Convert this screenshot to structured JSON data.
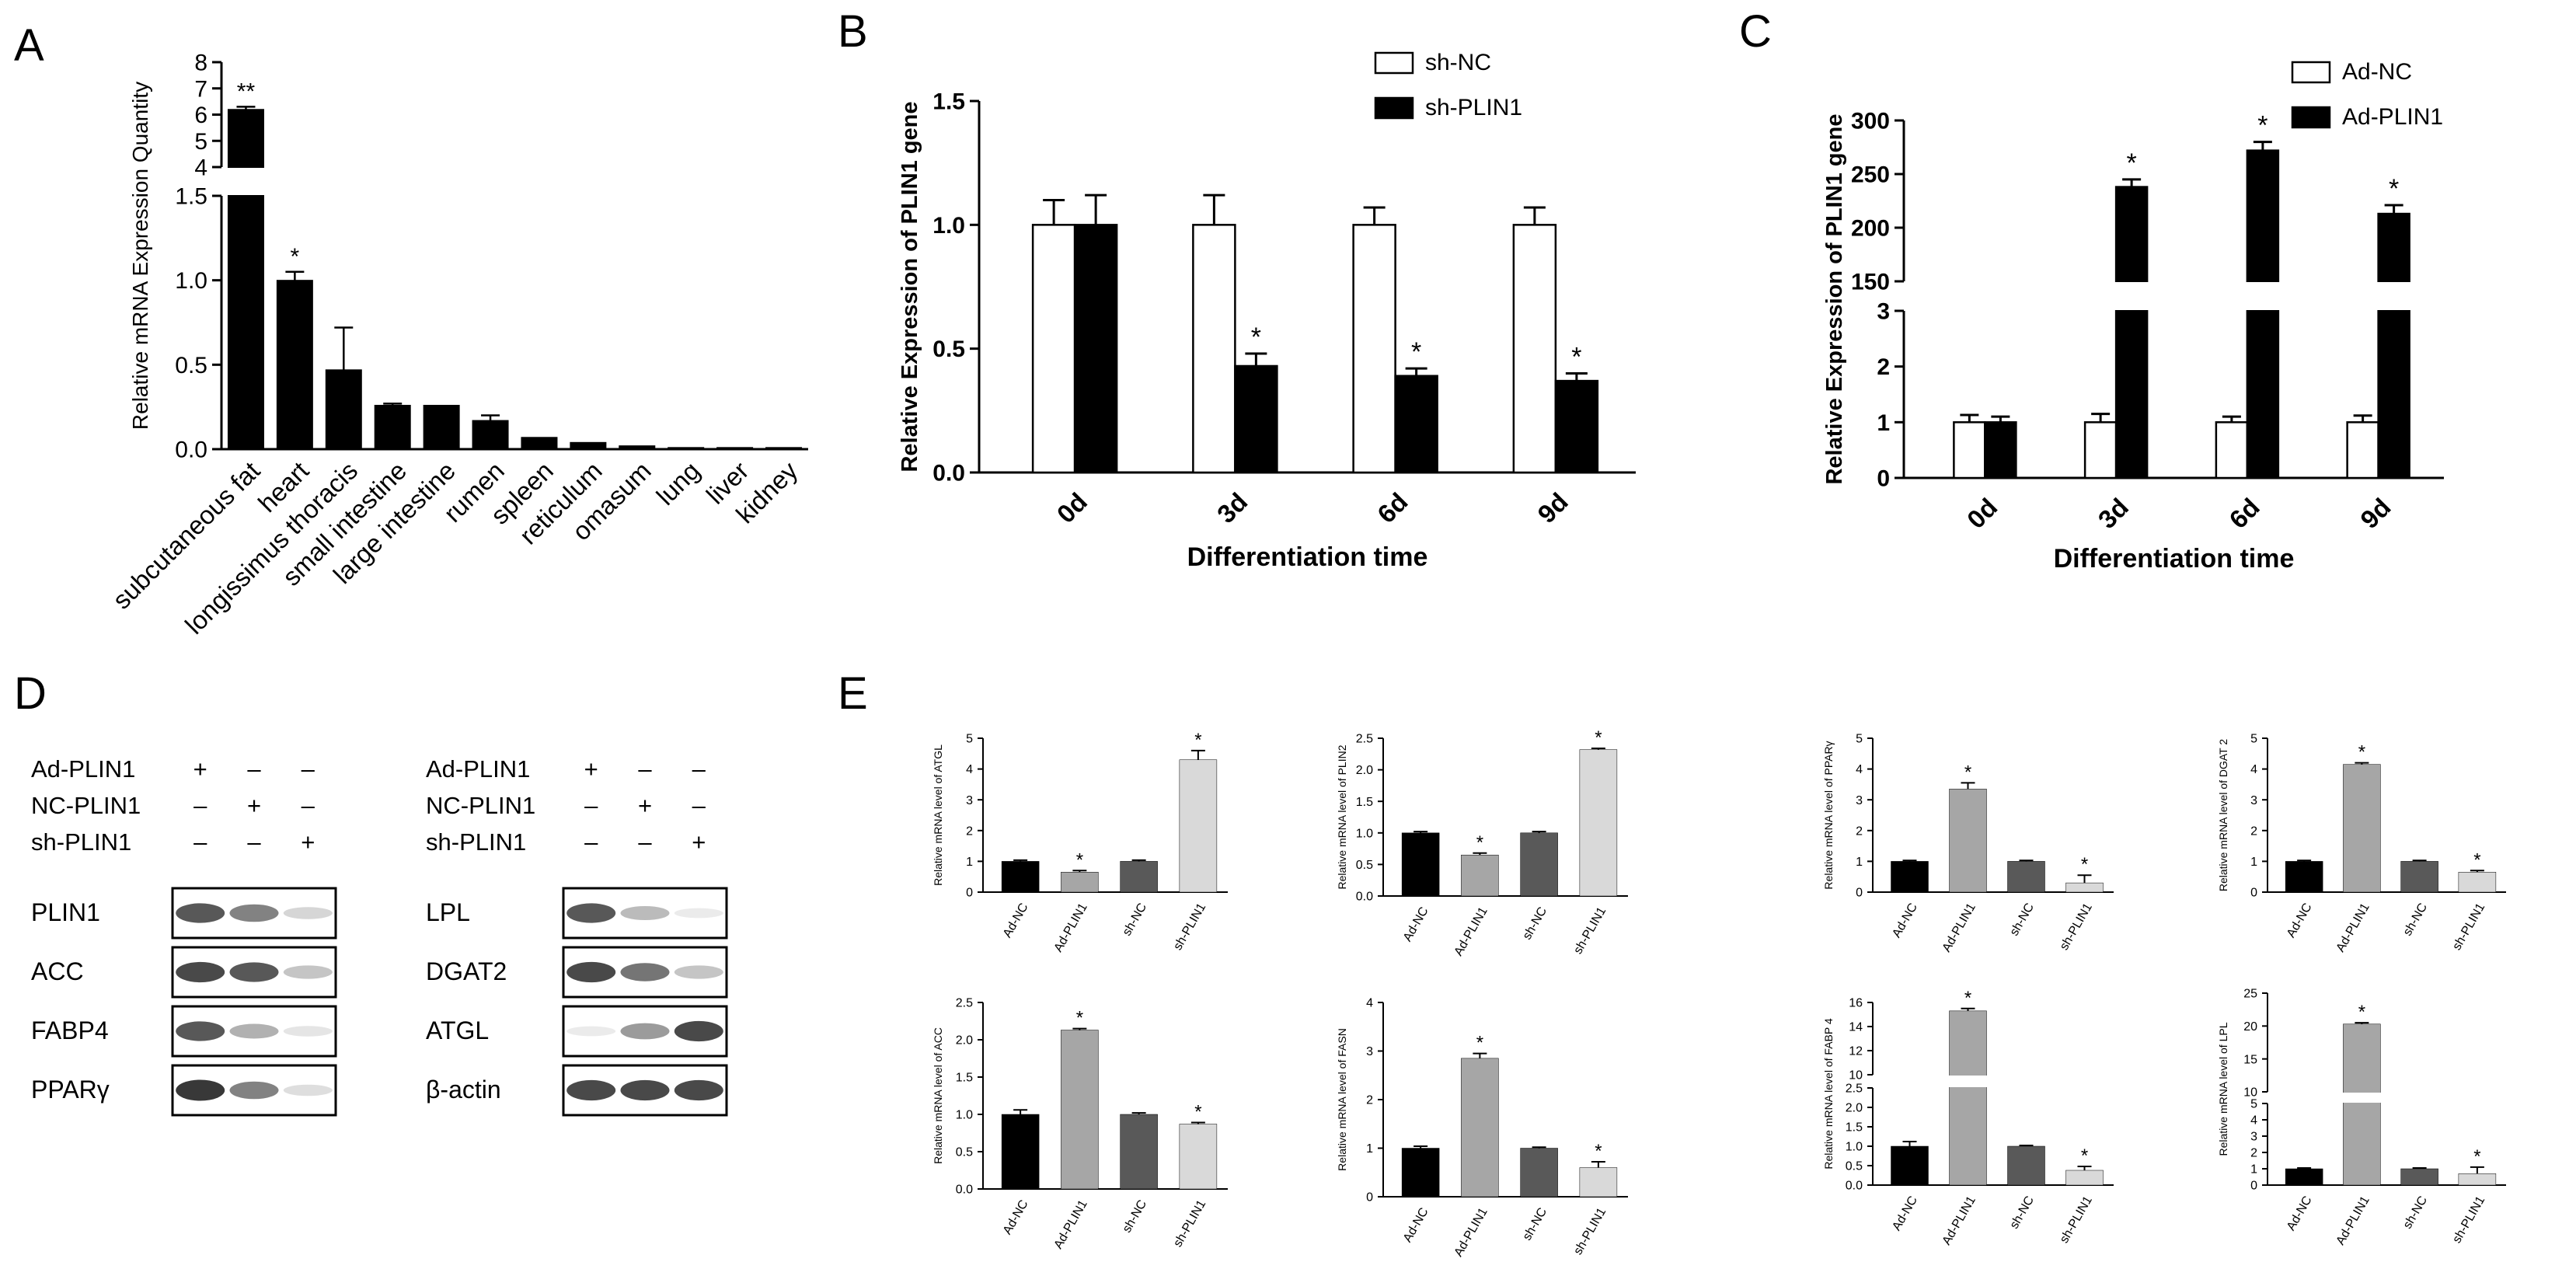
{
  "panels": {
    "A": "A",
    "B": "B",
    "C": "C",
    "D": "D",
    "E": "E"
  },
  "chart_data": [
    {
      "id": "A",
      "type": "bar",
      "ylabel": "Relative mRNA Expression Quantity",
      "categories": [
        "subcutaneous fat",
        "heart",
        "longissimus thoracis",
        "small intestine",
        "large intestine",
        "rumen",
        "spleen",
        "reticulum",
        "omasum",
        "lung",
        "liver",
        "kidney"
      ],
      "values": [
        6.2,
        1.0,
        0.47,
        0.26,
        0.26,
        0.17,
        0.07,
        0.04,
        0.02,
        0.01,
        0.01,
        0.01
      ],
      "errors": [
        0.1,
        0.05,
        0.25,
        0.01,
        0.0,
        0.03,
        0.0,
        0.0,
        0.0,
        0.0,
        0.0,
        0.0
      ],
      "annotations": [
        "**",
        "*",
        "",
        "",
        "",
        "",
        "",
        "",
        "",
        "",
        "",
        ""
      ],
      "y_lower_ticks": [
        "0.0",
        "0.5",
        "1.0",
        "1.5"
      ],
      "y_upper_ticks": [
        "4",
        "5",
        "6",
        "7",
        "8"
      ],
      "ylim_lower": [
        0,
        1.5
      ],
      "ylim_upper": [
        4,
        8
      ]
    },
    {
      "id": "B",
      "type": "bar",
      "xlabel": "Differentiation time",
      "ylabel": "Relative Expression of PLIN1 gene",
      "categories": [
        "0d",
        "3d",
        "6d",
        "9d"
      ],
      "series": [
        {
          "name": "sh-NC",
          "color": "#ffffff",
          "values": [
            1.0,
            1.0,
            1.0,
            1.0
          ],
          "errors": [
            0.1,
            0.12,
            0.07,
            0.07
          ]
        },
        {
          "name": "sh-PLIN1",
          "color": "#000000",
          "values": [
            1.0,
            0.43,
            0.39,
            0.37
          ],
          "errors": [
            0.12,
            0.05,
            0.03,
            0.03
          ],
          "annotations": [
            "",
            "*",
            "*",
            "*"
          ]
        }
      ],
      "yticks": [
        "0.0",
        "0.5",
        "1.0",
        "1.5"
      ],
      "ylim": [
        0,
        1.5
      ]
    },
    {
      "id": "C",
      "type": "bar",
      "xlabel": "Differentiation time",
      "ylabel": "Relative Expression of PLIN1 gene",
      "categories": [
        "0d",
        "3d",
        "6d",
        "9d"
      ],
      "series": [
        {
          "name": "Ad-NC",
          "color": "#ffffff",
          "values": [
            1.0,
            1.0,
            1.0,
            1.0
          ],
          "errors": [
            0.13,
            0.15,
            0.1,
            0.12
          ]
        },
        {
          "name": "Ad-PLIN1",
          "color": "#000000",
          "values": [
            1.0,
            238,
            272,
            213
          ],
          "errors": [
            0.1,
            7,
            8,
            8
          ],
          "annotations": [
            "",
            "*",
            "*",
            "*"
          ]
        }
      ],
      "y_lower_ticks": [
        "0",
        "1",
        "2",
        "3"
      ],
      "y_upper_ticks": [
        "150",
        "200",
        "250",
        "300"
      ],
      "ylim_lower": [
        0,
        3
      ],
      "ylim_upper": [
        150,
        300
      ]
    },
    {
      "id": "E1",
      "type": "bar",
      "ylabel": "Relative mRNA level of ATGL",
      "categories": [
        "Ad-NC",
        "Ad-PLIN1",
        "sh-NC",
        "sh-PLIN1"
      ],
      "values": [
        1.0,
        0.65,
        1.0,
        4.3
      ],
      "errors": [
        0.04,
        0.05,
        0.04,
        0.3
      ],
      "annotations": [
        "",
        "*",
        "",
        "*"
      ],
      "yticks": [
        "0",
        "1",
        "2",
        "3",
        "4",
        "5"
      ],
      "ylim": [
        0,
        5
      ]
    },
    {
      "id": "E2",
      "type": "bar",
      "ylabel": "Relative mRNA level of PLIN2",
      "categories": [
        "Ad-NC",
        "Ad-PLIN1",
        "sh-NC",
        "sh-PLIN1"
      ],
      "values": [
        1.0,
        0.65,
        1.0,
        2.32
      ],
      "errors": [
        0.02,
        0.03,
        0.02,
        0.02
      ],
      "annotations": [
        "",
        "*",
        "",
        "*"
      ],
      "yticks": [
        "0.0",
        "0.5",
        "1.0",
        "1.5",
        "2.0",
        "2.5"
      ],
      "ylim": [
        0,
        2.5
      ]
    },
    {
      "id": "E3",
      "type": "bar",
      "ylabel": "Relative mRNA level of PPARγ",
      "categories": [
        "Ad-NC",
        "Ad-PLIN1",
        "sh-NC",
        "sh-PLIN1"
      ],
      "values": [
        1.0,
        3.35,
        1.0,
        0.3
      ],
      "errors": [
        0.03,
        0.2,
        0.03,
        0.25
      ],
      "annotations": [
        "",
        "*",
        "",
        "*"
      ],
      "yticks": [
        "0",
        "1",
        "2",
        "3",
        "4",
        "5"
      ],
      "ylim": [
        0,
        5
      ]
    },
    {
      "id": "E4",
      "type": "bar",
      "ylabel": "Relative mRNA level of DGAT 2",
      "categories": [
        "Ad-NC",
        "Ad-PLIN1",
        "sh-NC",
        "sh-PLIN1"
      ],
      "values": [
        1.0,
        4.15,
        1.0,
        0.65
      ],
      "errors": [
        0.03,
        0.05,
        0.03,
        0.05
      ],
      "annotations": [
        "",
        "*",
        "",
        "*"
      ],
      "yticks": [
        "0",
        "1",
        "2",
        "3",
        "4",
        "5"
      ],
      "ylim": [
        0,
        5
      ]
    },
    {
      "id": "E5",
      "type": "bar",
      "ylabel": "Relative mRNA level of ACC",
      "categories": [
        "Ad-NC",
        "Ad-PLIN1",
        "sh-NC",
        "sh-PLIN1"
      ],
      "values": [
        1.0,
        2.13,
        1.0,
        0.87
      ],
      "errors": [
        0.06,
        0.02,
        0.02,
        0.02
      ],
      "annotations": [
        "",
        "*",
        "",
        "*"
      ],
      "yticks": [
        "0.0",
        "0.5",
        "1.0",
        "1.5",
        "2.0",
        "2.5"
      ],
      "ylim": [
        0,
        2.5
      ]
    },
    {
      "id": "E6",
      "type": "bar",
      "ylabel": "Relative mRNA level of FASN",
      "categories": [
        "Ad-NC",
        "Ad-PLIN1",
        "sh-NC",
        "sh-PLIN1"
      ],
      "values": [
        1.0,
        2.85,
        1.0,
        0.6
      ],
      "errors": [
        0.04,
        0.1,
        0.02,
        0.12
      ],
      "annotations": [
        "",
        "*",
        "",
        "*"
      ],
      "yticks": [
        "0",
        "1",
        "2",
        "3",
        "4"
      ],
      "ylim": [
        0,
        4
      ]
    },
    {
      "id": "E7",
      "type": "bar",
      "ylabel": "Relative mRNA level of FABP 4",
      "categories": [
        "Ad-NC",
        "Ad-PLIN1",
        "sh-NC",
        "sh-PLIN1"
      ],
      "values": [
        1.0,
        15.3,
        1.0,
        0.38
      ],
      "errors": [
        0.12,
        0.2,
        0.02,
        0.1
      ],
      "annotations": [
        "",
        "*",
        "",
        "*"
      ],
      "y_lower_ticks": [
        "0.0",
        "0.5",
        "1.0",
        "1.5",
        "2.0",
        "2.5"
      ],
      "y_upper_ticks": [
        "10",
        "12",
        "14",
        "16"
      ],
      "ylim_lower": [
        0,
        2.5
      ],
      "ylim_upper": [
        10,
        16
      ]
    },
    {
      "id": "E8",
      "type": "bar",
      "ylabel": "Relative mRNA level of LPL",
      "categories": [
        "Ad-NC",
        "Ad-PLIN1",
        "sh-NC",
        "sh-PLIN1"
      ],
      "values": [
        1.0,
        20.3,
        1.0,
        0.7
      ],
      "errors": [
        0.05,
        0.2,
        0.05,
        0.4
      ],
      "annotations": [
        "",
        "*",
        "",
        "*"
      ],
      "y_lower_ticks": [
        "0",
        "1",
        "2",
        "3",
        "4",
        "5"
      ],
      "y_upper_ticks": [
        "10",
        "15",
        "20",
        "25"
      ],
      "ylim_lower": [
        0,
        5
      ],
      "ylim_upper": [
        10,
        25
      ]
    }
  ],
  "blots": {
    "left": {
      "conditions": [
        {
          "label": "Ad-PLIN1",
          "marks": [
            "+",
            "–",
            "–"
          ]
        },
        {
          "label": "NC-PLIN1",
          "marks": [
            "–",
            "+",
            "–"
          ]
        },
        {
          "label": "sh-PLIN1",
          "marks": [
            "–",
            "–",
            "+"
          ]
        }
      ],
      "rows": [
        {
          "label": "PLIN1",
          "intensities": [
            0.85,
            0.7,
            0.3
          ]
        },
        {
          "label": "ACC",
          "intensities": [
            0.9,
            0.85,
            0.4
          ]
        },
        {
          "label": "FABP4",
          "intensities": [
            0.85,
            0.5,
            0.2
          ]
        },
        {
          "label": "PPARγ",
          "intensities": [
            0.95,
            0.7,
            0.25
          ]
        }
      ]
    },
    "right": {
      "conditions": [
        {
          "label": "Ad-PLIN1",
          "marks": [
            "+",
            "–",
            "–"
          ]
        },
        {
          "label": "NC-PLIN1",
          "marks": [
            "–",
            "+",
            "–"
          ]
        },
        {
          "label": "sh-PLIN1",
          "marks": [
            "–",
            "–",
            "+"
          ]
        }
      ],
      "rows": [
        {
          "label": "LPL",
          "intensities": [
            0.85,
            0.45,
            0.15
          ]
        },
        {
          "label": "DGAT2",
          "intensities": [
            0.9,
            0.75,
            0.4
          ]
        },
        {
          "label": "ATGL",
          "intensities": [
            0.15,
            0.6,
            0.9
          ]
        },
        {
          "label": "β-actin",
          "intensities": [
            0.9,
            0.9,
            0.9
          ]
        }
      ]
    }
  },
  "colors": {
    "black_bar": "#000000",
    "white_bar": "#ffffff",
    "ad_nc": "#000000",
    "ad_plin1": "#a6a6a6",
    "sh_nc": "#595959",
    "sh_plin1": "#d9d9d9"
  }
}
